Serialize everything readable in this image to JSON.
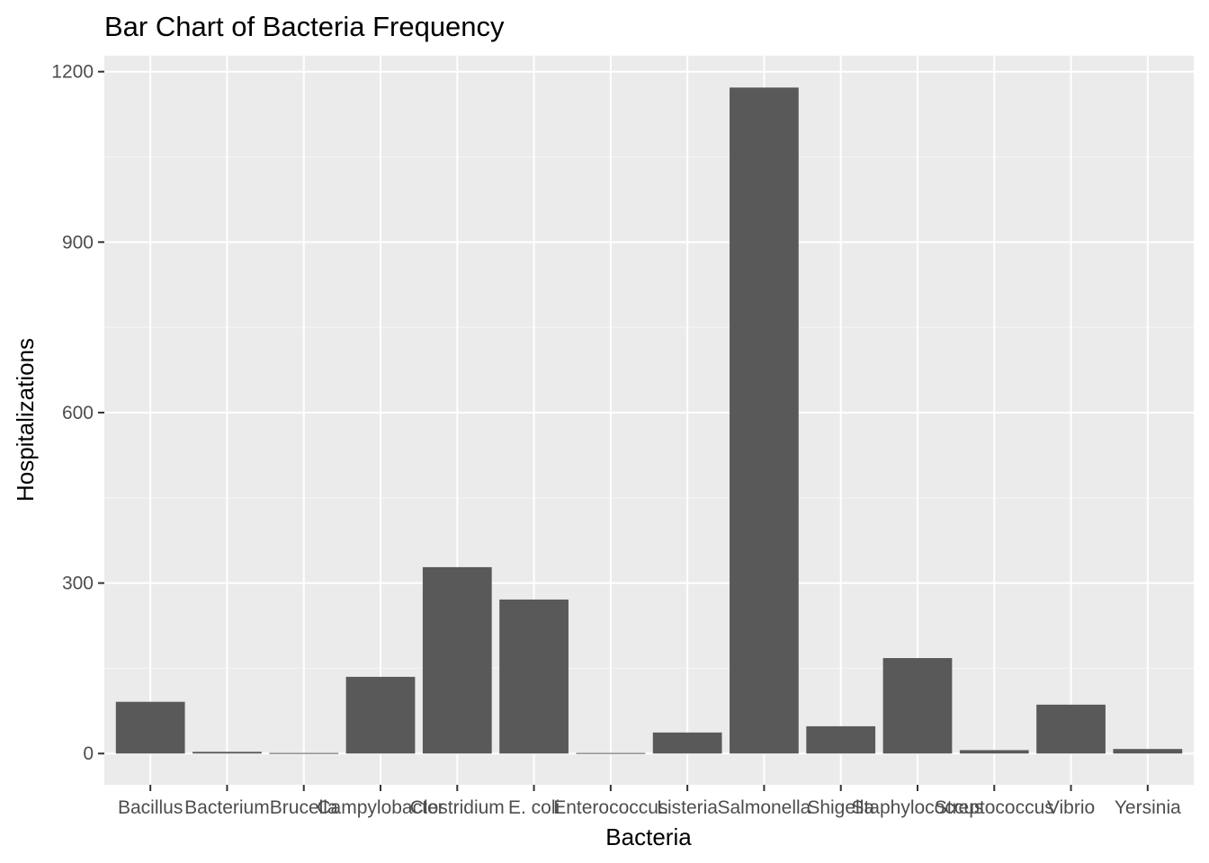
{
  "chart_data": {
    "type": "bar",
    "title": "Bar Chart of Bacteria Frequency",
    "xlabel": "Bacteria",
    "ylabel": "Hospitalizations",
    "categories": [
      "Bacillus",
      "Bacterium",
      "Brucella",
      "Campylobacter",
      "Clostridium",
      "E. coli",
      "Enterococcus",
      "Listeria",
      "Salmonella",
      "Shigella",
      "Staphylococcus",
      "Streptococcus",
      "Vibrio",
      "Yersinia"
    ],
    "values": [
      91,
      3,
      1,
      135,
      328,
      271,
      1,
      37,
      1172,
      48,
      168,
      6,
      86,
      8
    ],
    "ylim": [
      -55,
      1228
    ],
    "yticks": [
      0,
      300,
      600,
      900,
      1200
    ],
    "ytick_labels": [
      "0",
      "300",
      "600",
      "900",
      "1200"
    ],
    "grid": true,
    "colors": {
      "bar": "#595959",
      "panel": "#ebebeb",
      "grid_major": "#ffffff",
      "grid_minor": "#f5f5f5"
    }
  }
}
